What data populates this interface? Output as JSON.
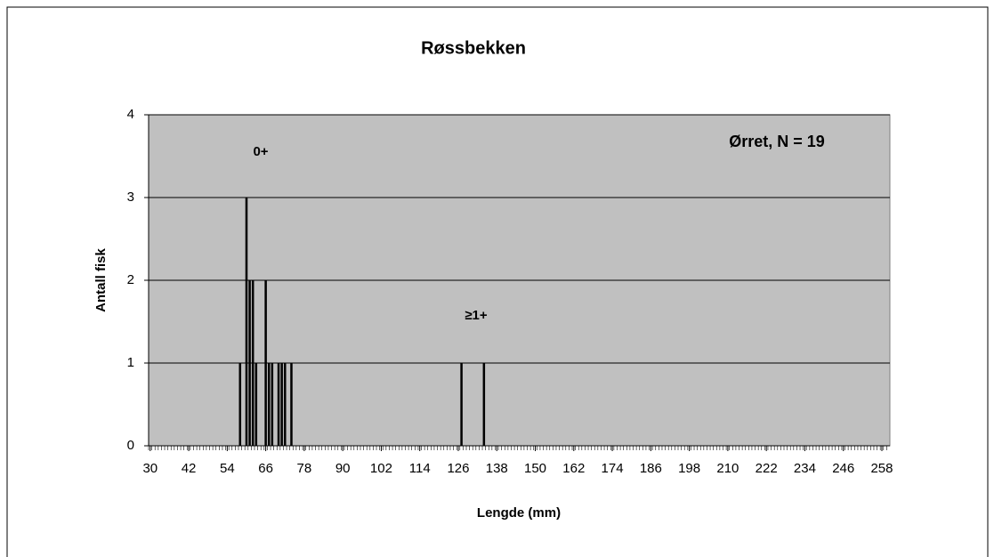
{
  "chart_data": {
    "type": "bar",
    "title": "Røssbekken",
    "x_label": "Lengde (mm)",
    "y_label": "Antall fisk",
    "annotations": [
      "0+",
      "≥1+",
      "Ørret, N = 19"
    ],
    "x": [
      58,
      60,
      61,
      62,
      63,
      66,
      67,
      68,
      70,
      71,
      72,
      74,
      127,
      134
    ],
    "values": [
      1,
      3,
      2,
      2,
      1,
      2,
      1,
      1,
      1,
      1,
      1,
      1,
      1,
      1
    ],
    "color": "#000000",
    "xlim": [
      29.5,
      260.5
    ],
    "xticks": [
      30,
      42,
      54,
      66,
      78,
      90,
      102,
      114,
      126,
      138,
      150,
      162,
      174,
      186,
      198,
      210,
      222,
      234,
      246,
      258
    ],
    "ylim": [
      0,
      4
    ],
    "yticks": [
      0,
      1,
      2,
      3,
      4
    ],
    "grid": true
  }
}
